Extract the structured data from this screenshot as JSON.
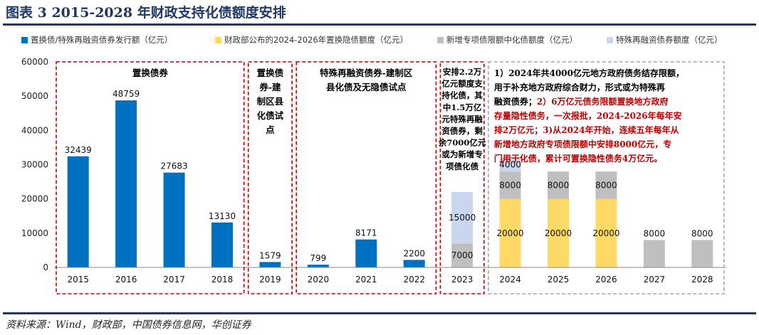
{
  "figure_title": "图表 3   2015-2028 年财政支持化债额度安排",
  "source": "资料来源：Wind，财政部，中国债券信息网，华创证券",
  "colors": {
    "blue": "#0070c0",
    "yellow": "#ffd966",
    "gray": "#bfbfbf",
    "lightblue": "#c9d6ee",
    "red_dash": "#c00000",
    "gray_dash": "#a6a6a6",
    "navy": "#1f3864"
  },
  "chart_data": {
    "type": "bar",
    "stacked": true,
    "categories": [
      "2015",
      "2016",
      "2017",
      "2018",
      "2019",
      "2020",
      "2021",
      "2022",
      "2023",
      "2024",
      "2025",
      "2026",
      "2027",
      "2028"
    ],
    "series": [
      {
        "name": "置换债/特殊再融资债券发行额（亿元）",
        "color": "#0070c0",
        "values": [
          32439,
          48759,
          27683,
          13130,
          1579,
          799,
          8171,
          2200,
          null,
          null,
          null,
          null,
          null,
          null
        ]
      },
      {
        "name": "财政部公布的2024-2026年置换隐债额度（亿元）",
        "color": "#ffd966",
        "values": [
          null,
          null,
          null,
          null,
          null,
          null,
          null,
          null,
          null,
          20000,
          20000,
          20000,
          null,
          null
        ]
      },
      {
        "name": "新增专项债限额中化债额度（亿元）",
        "color": "#bfbfbf",
        "values": [
          null,
          null,
          null,
          null,
          null,
          null,
          null,
          null,
          7000,
          8000,
          8000,
          8000,
          8000,
          8000
        ]
      },
      {
        "name": "特殊再融资债券额度（亿元）",
        "color": "#c9d6ee",
        "values": [
          null,
          null,
          null,
          null,
          null,
          null,
          null,
          null,
          15000,
          4000,
          null,
          null,
          null,
          null
        ]
      }
    ],
    "ylim": [
      0,
      60000
    ],
    "yticks": [
      0,
      10000,
      20000,
      30000,
      40000,
      50000,
      60000
    ],
    "grid": false,
    "legend_position": "top",
    "annotations": [
      {
        "name": "box-2015-2018",
        "lines": [
          "置换债券"
        ],
        "color": "#000000"
      },
      {
        "name": "box-2019",
        "lines": [
          "置换债",
          "券-建",
          "制区县",
          "化债试",
          "点"
        ],
        "color": "#000000"
      },
      {
        "name": "box-2020-2022",
        "lines": [
          "特殊再融资债券-建制区",
          "县化债及无隐债试点"
        ],
        "color": "#000000"
      },
      {
        "name": "box-2023",
        "lines": [
          "安排2.2万",
          "亿元额度支",
          "持化债，其",
          "中1.5万亿",
          "元特殊再融",
          "资债券，剩",
          "余7000亿元",
          "或为新增专",
          "项债化债"
        ],
        "color": "#000000"
      },
      {
        "name": "box-2024-2028",
        "color": "#000000",
        "lines": [
          [
            {
              "t": "1）2024年共4000亿元地方政府债务结存限额，",
              "c": "#000000"
            }
          ],
          [
            {
              "t": "用于补充地方政府综合财力，形式或为特殊再",
              "c": "#000000"
            }
          ],
          [
            {
              "t": "融资债券；",
              "c": "#000000"
            },
            {
              "t": "2）6万亿元债务限额置换地方政府",
              "c": "#c00000"
            }
          ],
          [
            {
              "t": "存量隐性债务，一次报批，2024-2026年每年安",
              "c": "#c00000"
            }
          ],
          [
            {
              "t": "排2万亿元；3)从2024年开始，连续五年每年从",
              "c": "#c00000"
            }
          ],
          [
            {
              "t": "新增地方政府专项债限额中安排8000亿元，专",
              "c": "#c00000"
            }
          ],
          [
            {
              "t": "门用于化债，累计可置换隐性债务4万亿元。",
              "c": "#c00000"
            }
          ]
        ]
      }
    ]
  }
}
